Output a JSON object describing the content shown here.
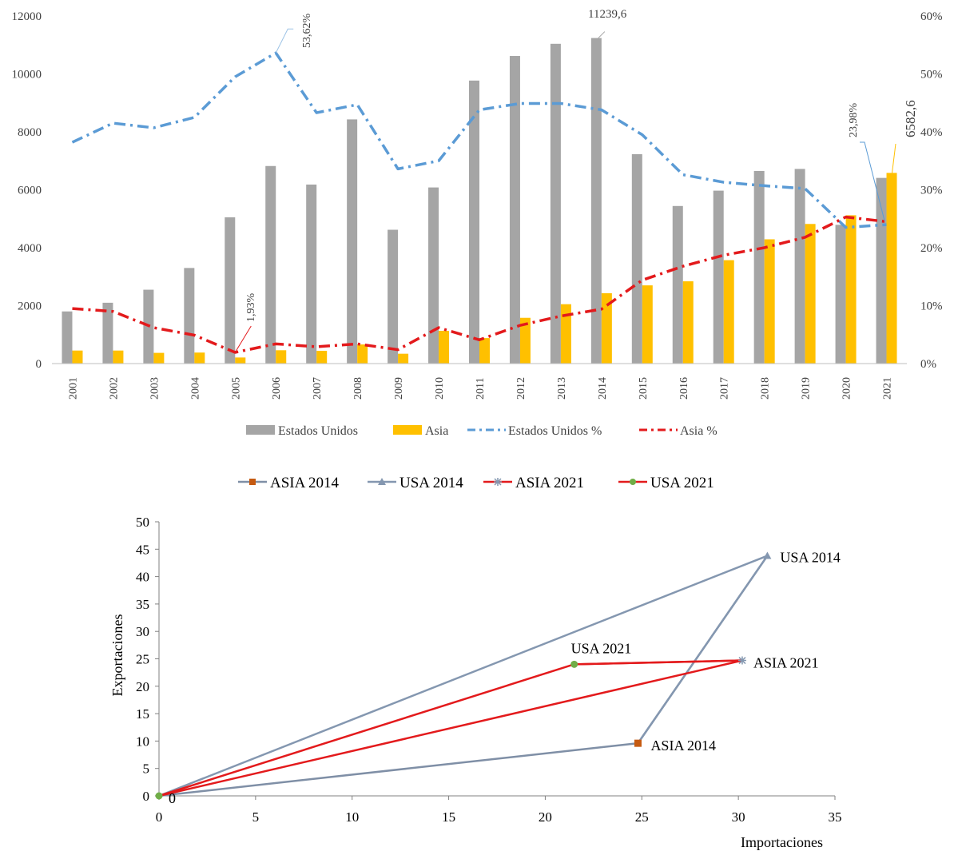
{
  "chart_data": [
    {
      "type": "bar",
      "categories": [
        "2001",
        "2002",
        "2003",
        "2004",
        "2005",
        "2006",
        "2007",
        "2008",
        "2009",
        "2010",
        "2011",
        "2012",
        "2013",
        "2014",
        "2015",
        "2016",
        "2017",
        "2018",
        "2019",
        "2020",
        "2021"
      ],
      "series": [
        {
          "name": "Estados Unidos",
          "type": "bar",
          "axis": "left",
          "color": "#a5a5a5",
          "values": [
            1800,
            2100,
            2550,
            3300,
            5050,
            6820,
            6180,
            8430,
            4620,
            6080,
            9770,
            10620,
            11040,
            11239.6,
            7230,
            5440,
            5970,
            6650,
            6720,
            4790,
            6410
          ]
        },
        {
          "name": "Asia",
          "type": "bar",
          "axis": "left",
          "color": "#ffc000",
          "values": [
            450,
            450,
            370,
            380,
            210,
            460,
            440,
            660,
            340,
            1130,
            880,
            1580,
            2050,
            2430,
            2700,
            2840,
            3570,
            4290,
            4820,
            5120,
            6582.6
          ]
        },
        {
          "name": "Estados Unidos %",
          "type": "line",
          "axis": "right",
          "color": "#5b9bd5",
          "values": [
            38.2,
            41.5,
            40.7,
            42.5,
            49.5,
            53.62,
            43.3,
            44.7,
            33.6,
            35.0,
            43.8,
            44.9,
            44.9,
            43.8,
            39.5,
            32.6,
            31.3,
            30.7,
            30.2,
            23.5,
            23.98
          ]
        },
        {
          "name": "Asia %",
          "type": "line",
          "axis": "right",
          "color": "#e31a1c",
          "values": [
            9.5,
            9.0,
            6.2,
            4.9,
            1.93,
            3.4,
            2.9,
            3.4,
            2.4,
            6.2,
            4.1,
            6.6,
            8.2,
            9.4,
            14.4,
            16.8,
            18.7,
            20.0,
            21.8,
            25.3,
            24.5
          ]
        }
      ],
      "left_axis": {
        "min": 0,
        "max": 12000,
        "ticks": [
          "0",
          "2000",
          "4000",
          "6000",
          "8000",
          "10000",
          "12000"
        ]
      },
      "right_axis": {
        "min": 0,
        "max": 60,
        "ticks": [
          "0%",
          "10%",
          "20%",
          "30%",
          "40%",
          "50%",
          "60%"
        ]
      },
      "annotations": [
        "53,62%",
        "1,93%",
        "11239,6",
        "23,98%",
        "6582,6"
      ],
      "legend": "bottom",
      "grid": false
    },
    {
      "type": "scatter",
      "xlabel": "Importaciones",
      "ylabel": "Exportaciones",
      "xlim": [
        0,
        35
      ],
      "ylim": [
        0,
        50
      ],
      "x_ticks": [
        "0",
        "5",
        "10",
        "15",
        "20",
        "25",
        "30",
        "35"
      ],
      "y_ticks": [
        "0",
        "5",
        "10",
        "15",
        "20",
        "25",
        "30",
        "35",
        "40",
        "45",
        "50"
      ],
      "legend": "top",
      "grid": false,
      "origin_label": "0",
      "series": [
        {
          "name": "ASIA 2014",
          "color": "#7f8fa6",
          "marker": "square",
          "marker_color": "#c55a11",
          "points": [
            [
              0,
              0
            ],
            [
              24.8,
              9.6
            ],
            [
              31.5,
              43.8
            ]
          ],
          "point_label": "ASIA 2014"
        },
        {
          "name": "USA 2014",
          "color": "#8497b0",
          "marker": "triangle",
          "marker_color": "#8497b0",
          "points": [
            [
              0,
              0
            ],
            [
              31.5,
              43.8
            ],
            [
              24.8,
              9.6
            ]
          ],
          "point_label": "USA 2014"
        },
        {
          "name": "ASIA 2021",
          "color": "#e31a1c",
          "marker": "asterisk",
          "marker_color": "#8497b0",
          "points": [
            [
              0,
              0
            ],
            [
              30.2,
              24.7
            ],
            [
              21.5,
              24.0
            ]
          ],
          "point_label": "ASIA 2021"
        },
        {
          "name": "USA 2021",
          "color": "#e31a1c",
          "marker": "circle",
          "marker_color": "#70ad47",
          "points": [
            [
              0,
              0
            ],
            [
              21.5,
              24.0
            ],
            [
              30.2,
              24.7
            ]
          ],
          "point_label": "USA 2021"
        }
      ]
    }
  ]
}
